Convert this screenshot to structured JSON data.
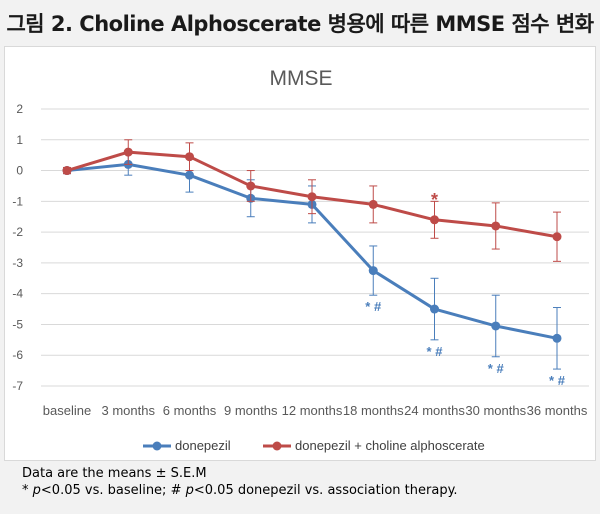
{
  "figure_title": "그림 2. Choline Alphoscerate 병용에 따른 MMSE 점수 변화",
  "footnote": {
    "line1": "Data are the means ± S.E.M",
    "line2_prefix": "* ",
    "line2_p1": "p",
    "line2_mid": "<0.05 vs. baseline; # ",
    "line2_p2": "p",
    "line2_suffix": "<0.05 donepezil vs. association therapy."
  },
  "colors": {
    "donepezil": "#4a7ebb",
    "combo": "#be4b48",
    "grid": "#d9d9d9",
    "axis_text": "#595959"
  },
  "chart_data": {
    "type": "line",
    "title": "MMSE",
    "categories": [
      "baseline",
      "3 months",
      "6 months",
      "9 months",
      "12 months",
      "18 months",
      "24 months",
      "30 months",
      "36 months"
    ],
    "ylim": [
      -7,
      2
    ],
    "yticks": [
      2,
      1,
      0,
      -1,
      -2,
      -3,
      -4,
      -5,
      -6,
      -7
    ],
    "xlabel": "",
    "ylabel": "",
    "legend_position": "bottom",
    "series": [
      {
        "name": "donepezil",
        "color": "#4a7ebb",
        "values": [
          0.0,
          0.2,
          -0.15,
          -0.9,
          -1.1,
          -3.25,
          -4.5,
          -5.05,
          -5.45
        ],
        "error": [
          0.1,
          0.35,
          0.55,
          0.6,
          0.6,
          0.8,
          1.0,
          1.0,
          1.0
        ],
        "annotations": [
          "",
          "",
          "",
          "",
          "",
          "* #",
          "* #",
          "* #",
          "* #"
        ]
      },
      {
        "name": "donepezil + choline alphoscerate",
        "color": "#be4b48",
        "values": [
          0.0,
          0.6,
          0.45,
          -0.5,
          -0.85,
          -1.1,
          -1.6,
          -1.8,
          -2.15
        ],
        "error": [
          0.1,
          0.4,
          0.45,
          0.5,
          0.55,
          0.6,
          0.6,
          0.75,
          0.8
        ],
        "annotations": [
          "",
          "",
          "",
          "",
          "",
          "",
          "*",
          "",
          ""
        ]
      }
    ]
  }
}
